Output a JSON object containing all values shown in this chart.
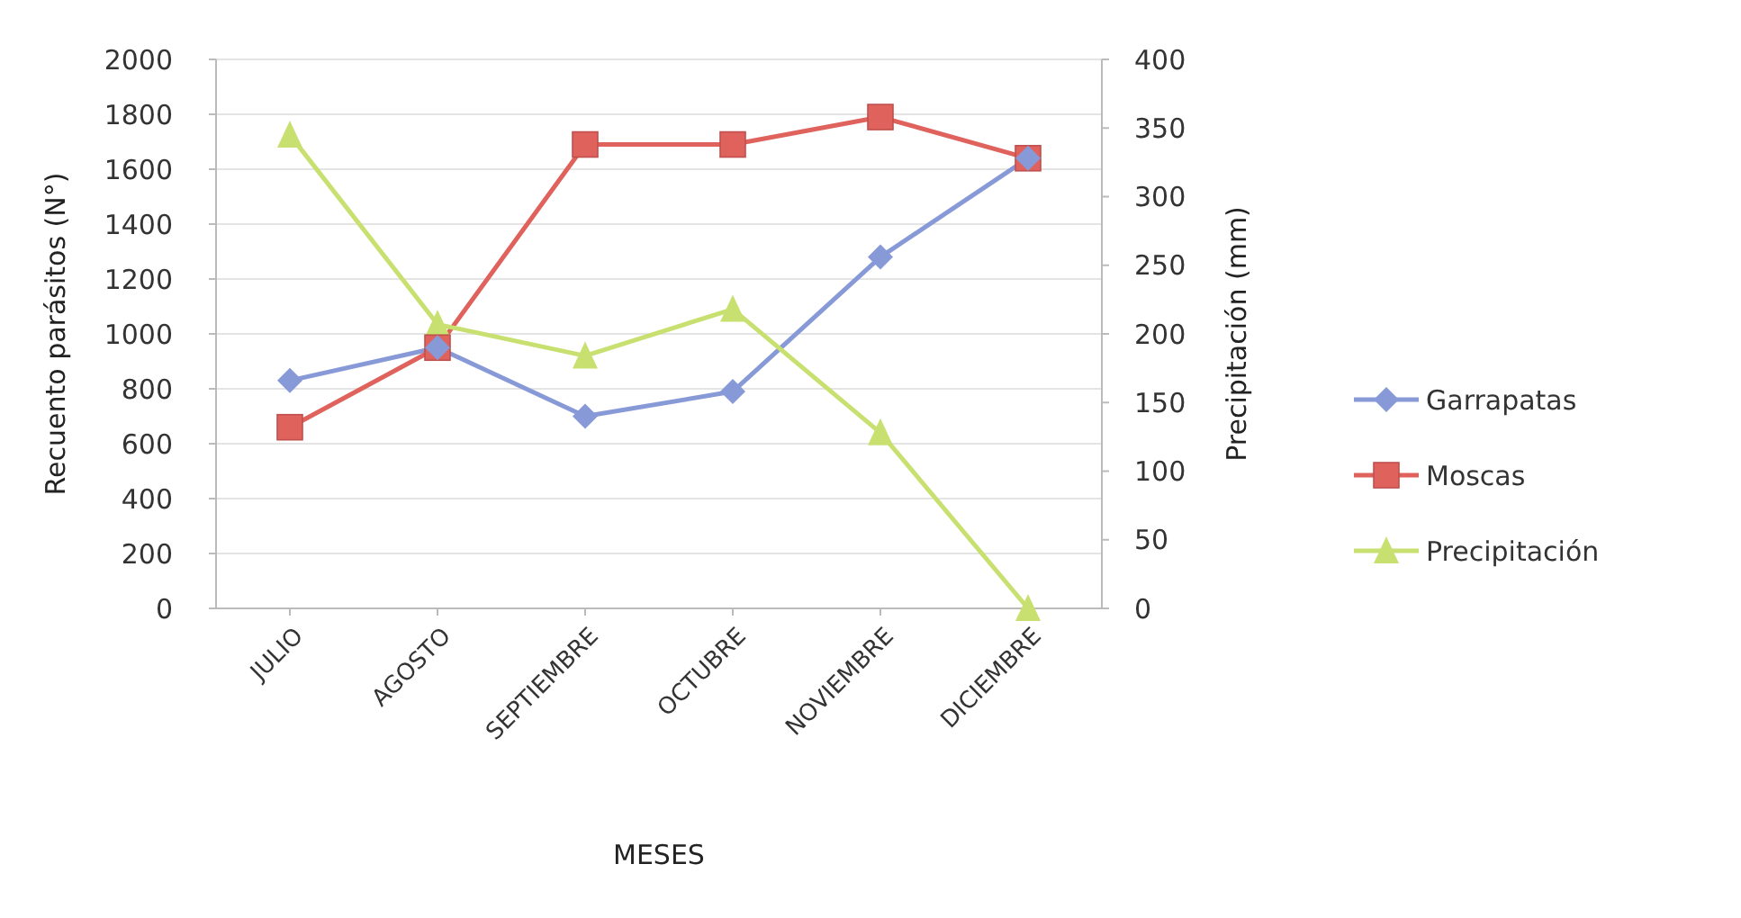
{
  "chart_data": {
    "type": "line",
    "xlabel": "MESES",
    "ylabel": "Recuento parásitos (N°)",
    "y2label": "Precipitación (mm)",
    "categories": [
      "JULIO",
      "AGOSTO",
      "SEPTIEMBRE",
      "OCTUBRE",
      "NOVIEMBRE",
      "DICIEMBRE"
    ],
    "series": [
      {
        "name": "Garrapatas",
        "color": "#8899d8",
        "marker": "diamond",
        "values": [
          830,
          950,
          700,
          790,
          1280,
          1640
        ]
      },
      {
        "name": "Moscas",
        "color": "#e0625c",
        "marker": "square",
        "values": [
          660,
          950,
          1690,
          1690,
          1790,
          1640
        ]
      },
      {
        "name": "Precipitación",
        "color": "#c8e070",
        "marker": "triangle",
        "axis": "y2",
        "values": [
          345,
          207,
          184,
          218,
          128,
          0
        ]
      }
    ],
    "ylim": [
      0,
      2000
    ],
    "yticks": [
      0,
      200,
      400,
      600,
      800,
      1000,
      1200,
      1400,
      1600,
      1800,
      2000
    ],
    "y2lim": [
      0,
      400
    ],
    "y2ticks": [
      0,
      50,
      100,
      150,
      200,
      250,
      300,
      350,
      400
    ],
    "grid": "y",
    "legend": "right"
  }
}
